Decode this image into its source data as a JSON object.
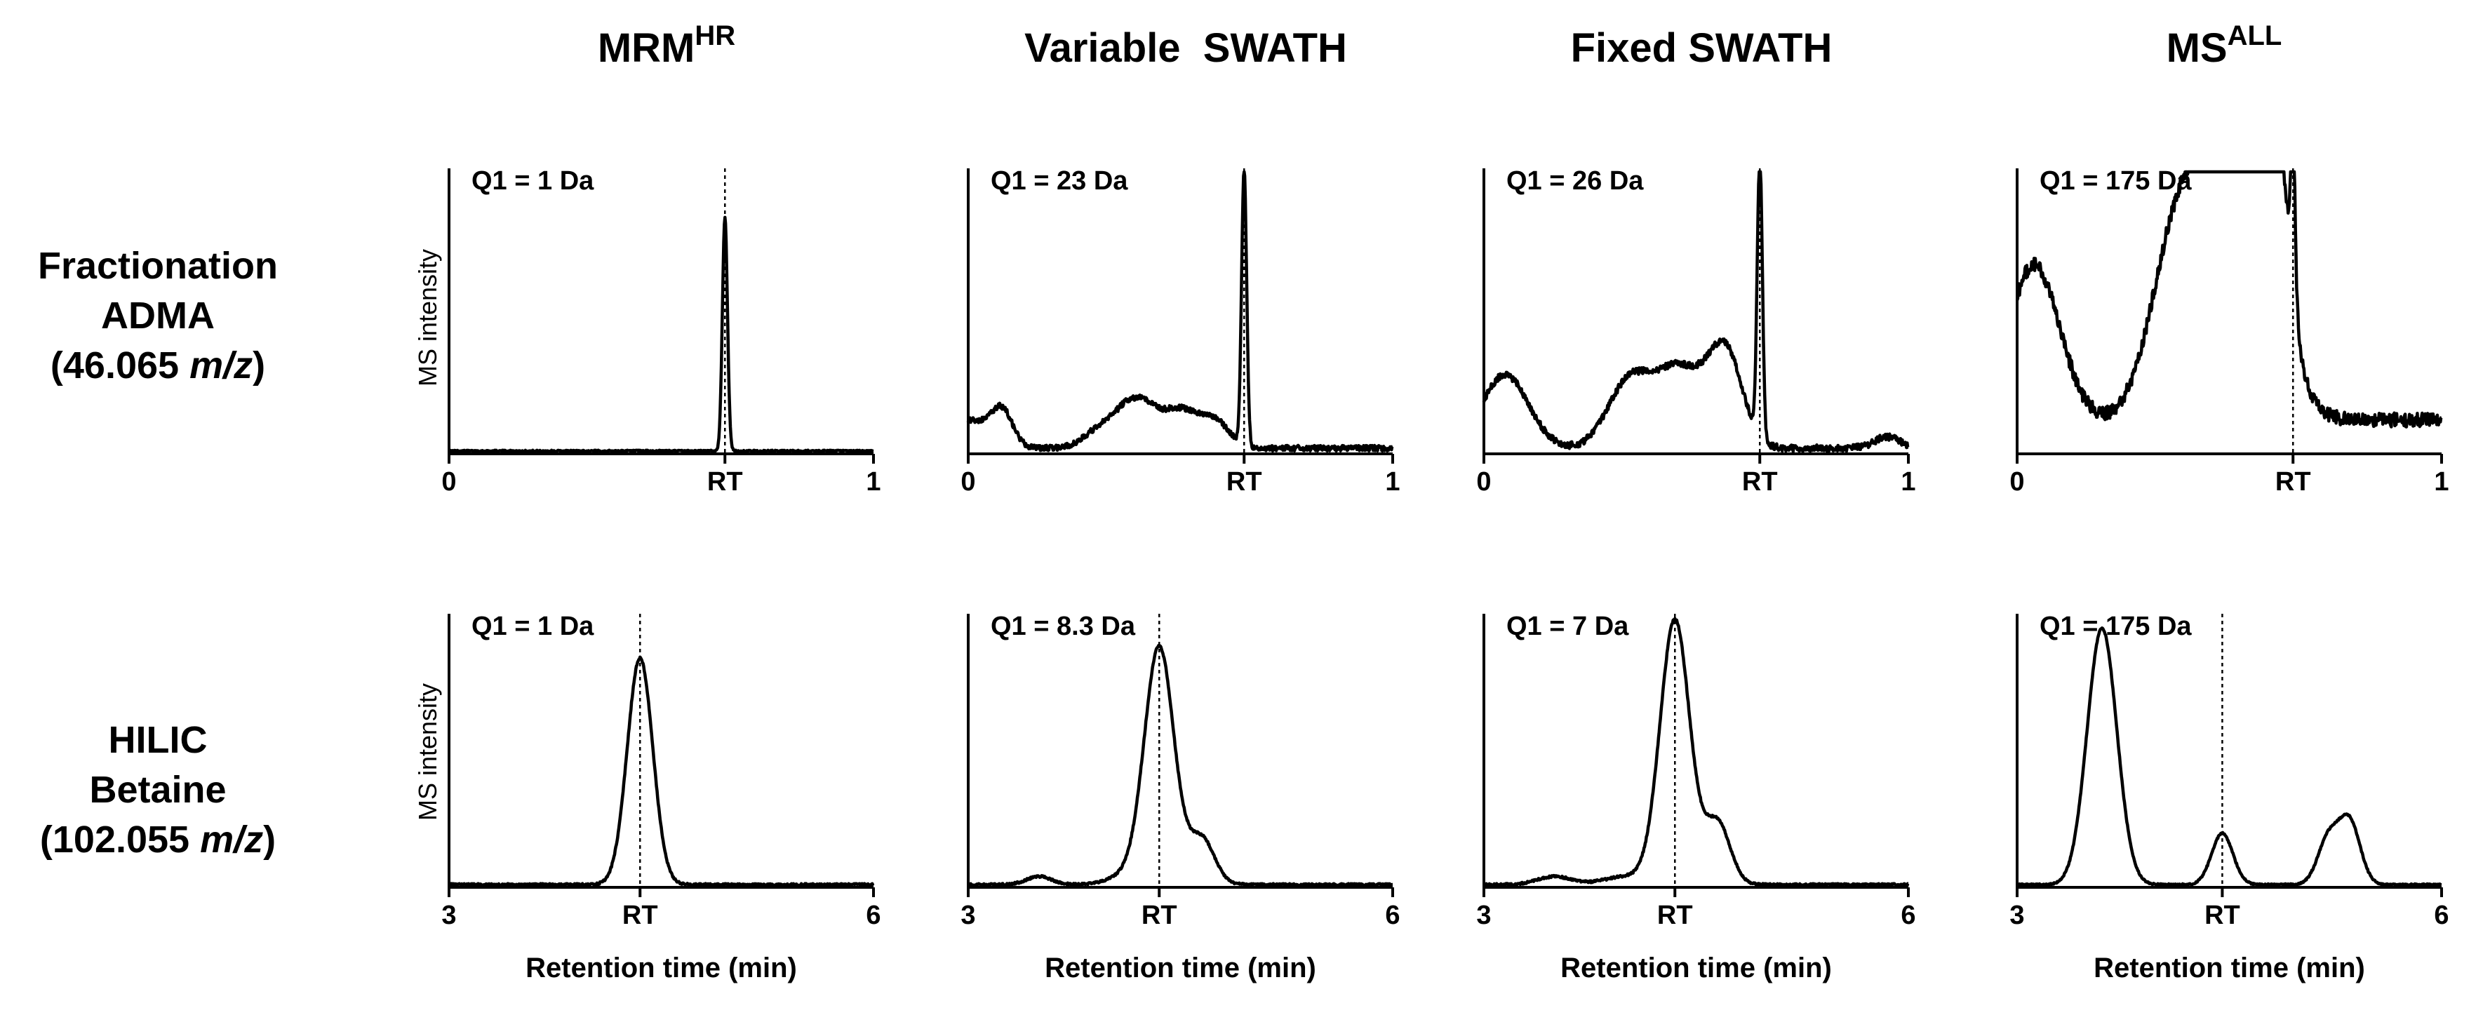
{
  "figure": {
    "columns": [
      {
        "title": "MRM",
        "sup": "HR"
      },
      {
        "title": "Variable  SWATH",
        "sup": ""
      },
      {
        "title": "Fixed SWATH",
        "sup": ""
      },
      {
        "title": "MS",
        "sup": "ALL"
      }
    ],
    "rows": [
      {
        "lines": [
          {
            "text": "Fractionation"
          },
          {
            "text": "ADMA"
          },
          {
            "pre": "(46.065 ",
            "ital": "m/z",
            "post": ")"
          }
        ]
      },
      {
        "lines": [
          {
            "text": "HILIC"
          },
          {
            "text": "Betaine"
          },
          {
            "pre": "(102.055 ",
            "ital": "m/z",
            "post": ")"
          }
        ]
      }
    ],
    "y_axis_label": "MS intensity",
    "x_axis_label": "Retention time (min)",
    "rt_label": "RT"
  },
  "chart_data": [
    {
      "type": "line",
      "row": 0,
      "col": 0,
      "q1": "Q1 = 1 Da",
      "ylabel": "MS intensity",
      "xlabel": "",
      "x_ticks": [
        "0",
        "RT",
        "1"
      ],
      "xlim": [
        0,
        1
      ],
      "ylim": [
        0,
        1
      ],
      "rt": 0.65,
      "baseline": 0.01,
      "noise": 0.003,
      "features": [
        {
          "c": 0.65,
          "h": 0.83,
          "w": 0.006
        }
      ]
    },
    {
      "type": "line",
      "row": 0,
      "col": 1,
      "q1": "Q1 = 23 Da",
      "ylabel": "",
      "xlabel": "",
      "x_ticks": [
        "0",
        "RT",
        "1"
      ],
      "xlim": [
        0,
        1
      ],
      "ylim": [
        0,
        1
      ],
      "rt": 0.65,
      "baseline": 0.02,
      "noise": 0.01,
      "features": [
        {
          "c": 0.65,
          "h": 0.98,
          "w": 0.006
        },
        {
          "c": 0.0,
          "h": 0.1,
          "w": 0.05
        },
        {
          "c": 0.08,
          "h": 0.12,
          "w": 0.025
        },
        {
          "c": 0.32,
          "h": 0.08,
          "w": 0.04
        },
        {
          "c": 0.38,
          "h": 0.12,
          "w": 0.03
        },
        {
          "c": 0.42,
          "h": 0.07,
          "w": 0.025
        },
        {
          "c": 0.47,
          "h": 0.1,
          "w": 0.04
        },
        {
          "c": 0.53,
          "h": 0.09,
          "w": 0.04
        },
        {
          "c": 0.59,
          "h": 0.07,
          "w": 0.03
        }
      ]
    },
    {
      "type": "line",
      "row": 0,
      "col": 2,
      "q1": "Q1 = 26 Da",
      "ylabel": "",
      "xlabel": "",
      "x_ticks": [
        "0",
        "RT",
        "1"
      ],
      "xlim": [
        0,
        1
      ],
      "ylim": [
        0,
        1
      ],
      "rt": 0.65,
      "baseline": 0.02,
      "noise": 0.012,
      "features": [
        {
          "c": 0.65,
          "h": 1.0,
          "w": 0.006
        },
        {
          "c": 0.05,
          "h": 0.26,
          "w": 0.055
        },
        {
          "c": 0.34,
          "h": 0.22,
          "w": 0.05
        },
        {
          "c": 0.46,
          "h": 0.28,
          "w": 0.06
        },
        {
          "c": 0.57,
          "h": 0.32,
          "w": 0.04
        },
        {
          "c": 0.95,
          "h": 0.04,
          "w": 0.03
        }
      ]
    },
    {
      "type": "line",
      "row": 0,
      "col": 3,
      "q1": "Q1 = 175 Da",
      "ylabel": "",
      "xlabel": "",
      "x_ticks": [
        "0",
        "RT",
        "1"
      ],
      "xlim": [
        0,
        1
      ],
      "ylim": [
        0,
        1
      ],
      "rt": 0.65,
      "baseline": 0.12,
      "noise": 0.025,
      "features": [
        {
          "c": 0.04,
          "h": 0.55,
          "w": 0.06
        },
        {
          "c": 0.37,
          "h": 0.55,
          "w": 0.06
        },
        {
          "c": 0.48,
          "h": 0.66,
          "w": 0.07
        },
        {
          "c": 0.55,
          "h": 0.6,
          "w": 0.07
        },
        {
          "c": 0.62,
          "h": 0.52,
          "w": 0.025
        },
        {
          "c": 0.65,
          "h": 0.55,
          "w": 0.005
        }
      ]
    },
    {
      "type": "line",
      "row": 1,
      "col": 0,
      "q1": "Q1 = 1 Da",
      "ylabel": "MS intensity",
      "xlabel": "Retention time (min)",
      "x_ticks": [
        "3",
        "RT",
        "6"
      ],
      "xlim": [
        3,
        6
      ],
      "ylim": [
        0,
        1
      ],
      "rt": 4.35,
      "baseline": 0.01,
      "noise": 0.004,
      "features": [
        {
          "c": 4.35,
          "h": 0.84,
          "w": 0.03
        }
      ]
    },
    {
      "type": "line",
      "row": 1,
      "col": 1,
      "q1": "Q1 = 8.3 Da",
      "ylabel": "",
      "xlabel": "Retention time (min)",
      "x_ticks": [
        "3",
        "RT",
        "6"
      ],
      "xlim": [
        3,
        6
      ],
      "ylim": [
        0,
        1
      ],
      "rt": 4.35,
      "baseline": 0.01,
      "noise": 0.004,
      "features": [
        {
          "c": 4.35,
          "h": 0.88,
          "w": 0.035
        },
        {
          "c": 4.65,
          "h": 0.17,
          "w": 0.03
        },
        {
          "c": 3.5,
          "h": 0.03,
          "w": 0.03
        },
        {
          "c": 4.1,
          "h": 0.03,
          "w": 0.04
        }
      ]
    },
    {
      "type": "line",
      "row": 1,
      "col": 2,
      "q1": "Q1 = 7 Da",
      "ylabel": "",
      "xlabel": "Retention time (min)",
      "x_ticks": [
        "3",
        "RT",
        "6"
      ],
      "xlim": [
        3,
        6
      ],
      "ylim": [
        0,
        1
      ],
      "rt": 4.35,
      "baseline": 0.01,
      "noise": 0.004,
      "features": [
        {
          "c": 4.35,
          "h": 0.98,
          "w": 0.035
        },
        {
          "c": 4.65,
          "h": 0.23,
          "w": 0.03
        },
        {
          "c": 3.5,
          "h": 0.03,
          "w": 0.04
        },
        {
          "c": 4.0,
          "h": 0.03,
          "w": 0.05
        }
      ]
    },
    {
      "type": "line",
      "row": 1,
      "col": 3,
      "q1": "Q1 = 175 Da",
      "ylabel": "",
      "xlabel": "Retention time (min)",
      "x_ticks": [
        "3",
        "RT",
        "6"
      ],
      "xlim": [
        3,
        6
      ],
      "ylim": [
        0,
        1
      ],
      "rt": 4.45,
      "baseline": 0.01,
      "noise": 0.003,
      "features": [
        {
          "c": 3.6,
          "h": 0.95,
          "w": 0.035
        },
        {
          "c": 4.45,
          "h": 0.19,
          "w": 0.025
        },
        {
          "c": 5.2,
          "h": 0.17,
          "w": 0.025
        },
        {
          "c": 5.35,
          "h": 0.23,
          "w": 0.025
        }
      ]
    }
  ]
}
